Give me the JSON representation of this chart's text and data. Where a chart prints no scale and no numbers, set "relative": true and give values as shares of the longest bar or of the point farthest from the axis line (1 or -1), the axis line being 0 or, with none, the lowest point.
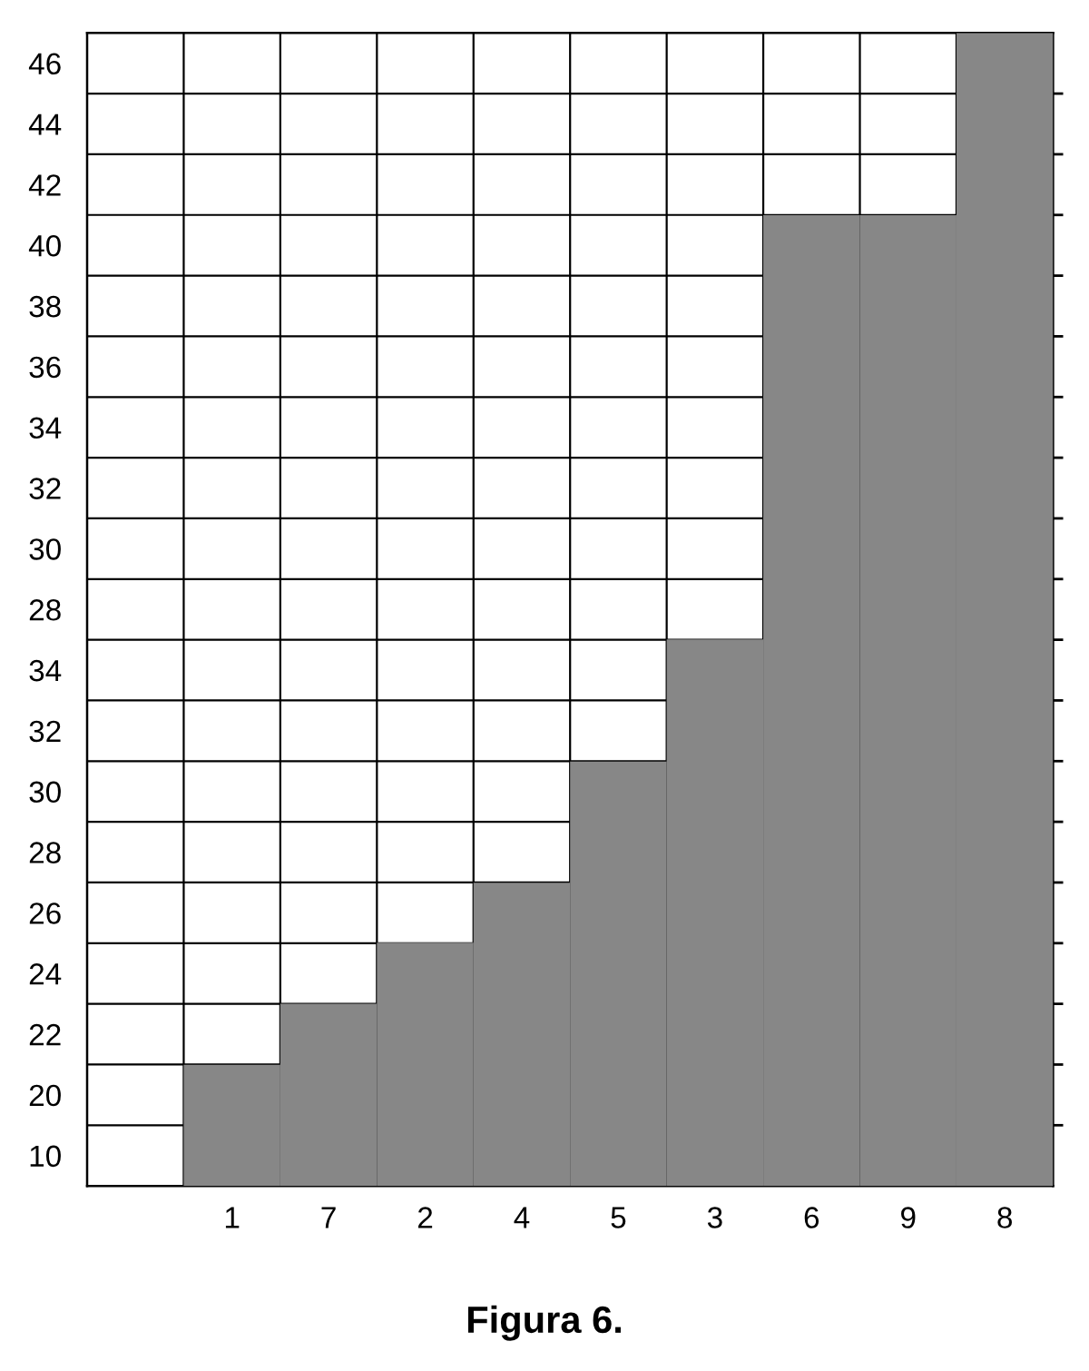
{
  "chart_data": {
    "type": "bar",
    "title": "Figura 6.",
    "categories": [
      null,
      "1",
      "7",
      "2",
      "4",
      "5",
      "3",
      "6",
      "9",
      "8"
    ],
    "y_categories": [
      "46",
      "44",
      "42",
      "40",
      "38",
      "36",
      "34",
      "32",
      "30",
      "28",
      "34",
      "32",
      "30",
      "28",
      "26",
      "24",
      "22",
      "20",
      "10"
    ],
    "values": [
      0,
      0.105,
      0.158,
      0.211,
      0.263,
      0.368,
      0.474,
      0.842,
      0.842,
      1
    ],
    "relative": true,
    "color": "#878787",
    "grid": true
  }
}
